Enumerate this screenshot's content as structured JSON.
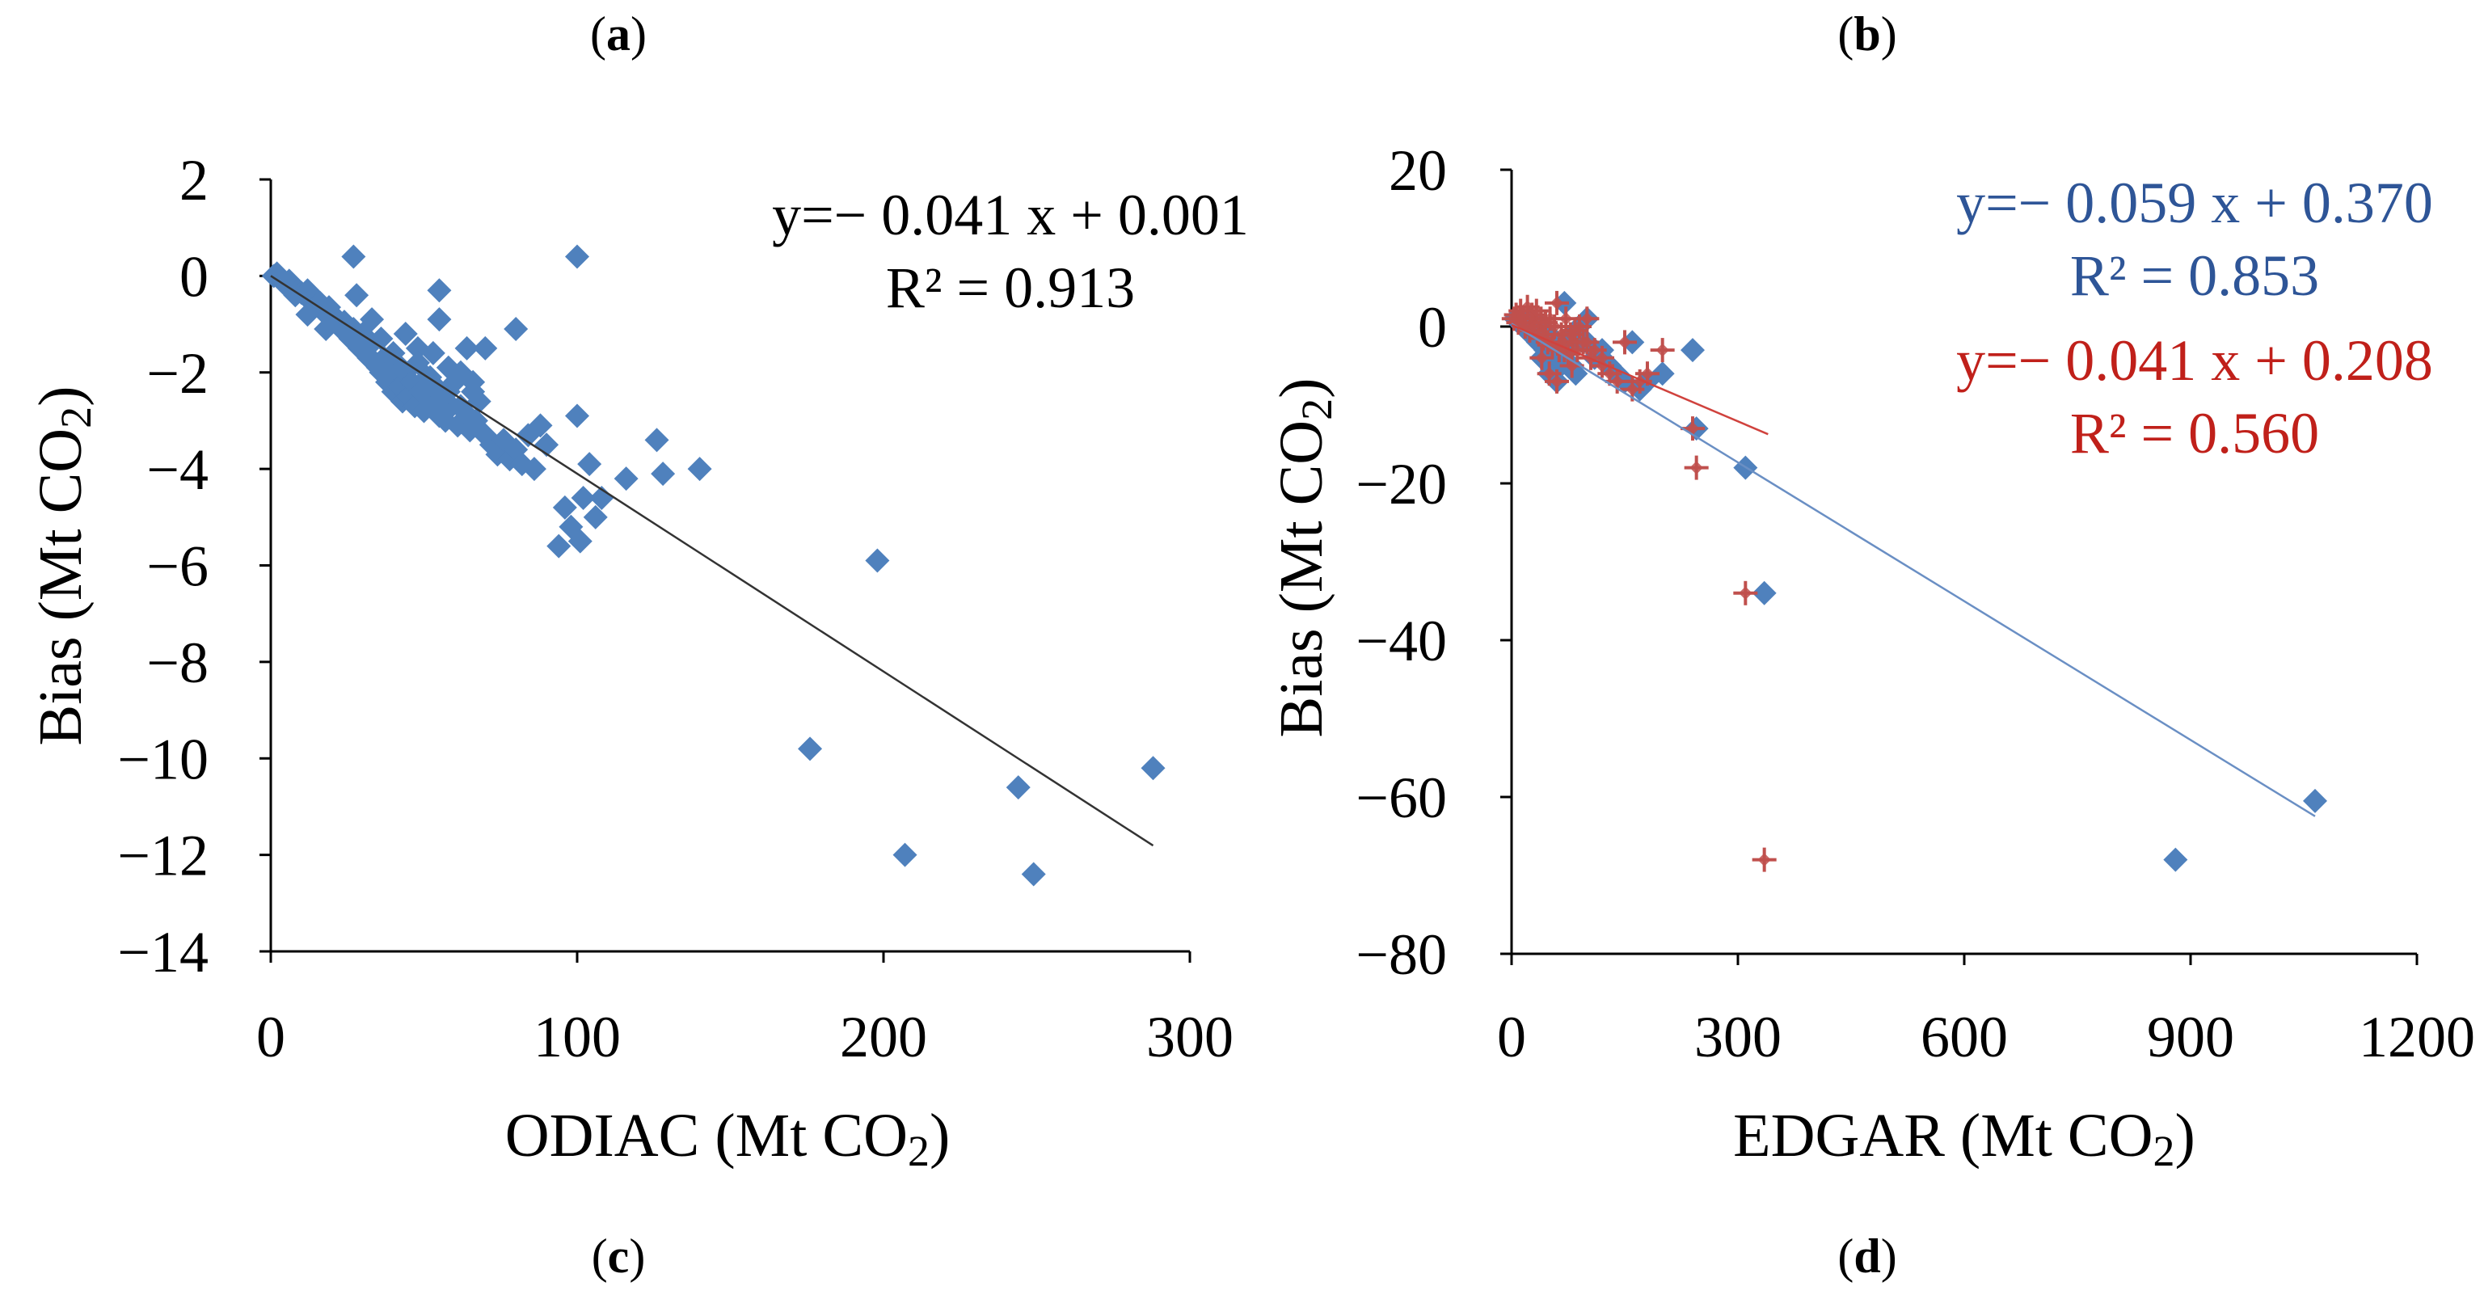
{
  "panels": {
    "a": "a",
    "b": "b",
    "c": "c",
    "d": "d"
  },
  "chart_data": [
    {
      "type": "scatter",
      "title": "",
      "xlabel": "ODIAC (Mt CO",
      "xlabel_sub": "2",
      "xlabel_end": ")",
      "ylabel": "Bias (Mt CO",
      "ylabel_sub": "2",
      "ylabel_end": ")",
      "xlim": [
        0,
        300
      ],
      "ylim": [
        -14,
        2
      ],
      "xticks": [
        0,
        100,
        200,
        300
      ],
      "xtick_labels": [
        "0",
        "100",
        "200",
        "300"
      ],
      "yticks": [
        2,
        0,
        -2,
        -4,
        -6,
        -8,
        -10,
        -12,
        -14
      ],
      "ytick_labels": [
        "2",
        "0",
        "−2",
        "−4",
        "−6",
        "−8",
        "−10",
        "−12",
        "−14"
      ],
      "grid": false,
      "series": [
        {
          "color": "#4f81bd",
          "marker": "diamond",
          "x": [
            1,
            2,
            3,
            4,
            5,
            6,
            7,
            8,
            9,
            10,
            11,
            12,
            13,
            14,
            15,
            16,
            17,
            18,
            19,
            20,
            21,
            22,
            23,
            24,
            25,
            26,
            27,
            28,
            29,
            30,
            31,
            32,
            33,
            34,
            35,
            36,
            37,
            38,
            39,
            40,
            41,
            42,
            43,
            44,
            45,
            46,
            47,
            48,
            49,
            50,
            51,
            52,
            53,
            54,
            55,
            56,
            57,
            58,
            59,
            60,
            61,
            62,
            63,
            64,
            65,
            66,
            67,
            68,
            70,
            72,
            74,
            76,
            78,
            80,
            82,
            84,
            86,
            88,
            90,
            94,
            96,
            98,
            100,
            101,
            102,
            104,
            106,
            108,
            116,
            126,
            128,
            140,
            3,
            5,
            8,
            12,
            18,
            28,
            33,
            36,
            40,
            44,
            48,
            52,
            55,
            58,
            62,
            66,
            70,
            55,
            27,
            80,
            100,
            176,
            198,
            207,
            244,
            249,
            288
          ],
          "y": [
            0.0,
            0.05,
            -0.05,
            -0.1,
            -0.15,
            -0.1,
            -0.2,
            -0.25,
            -0.3,
            -0.35,
            -0.4,
            -0.3,
            -0.5,
            -0.45,
            -0.6,
            -0.55,
            -0.7,
            -0.8,
            -0.65,
            -0.9,
            -0.85,
            -1.0,
            -1.1,
            -0.95,
            -1.2,
            -1.3,
            -1.1,
            -1.4,
            -1.5,
            -1.2,
            -1.6,
            -1.7,
            -1.4,
            -1.8,
            -1.9,
            -2.0,
            -1.7,
            -2.2,
            -2.1,
            -2.4,
            -1.8,
            -2.3,
            -2.6,
            -2.0,
            -2.5,
            -2.2,
            -2.7,
            -1.5,
            -2.4,
            -2.8,
            -2.1,
            -2.6,
            -1.6,
            -2.3,
            -2.9,
            -2.5,
            -3.0,
            -1.9,
            -2.7,
            -2.2,
            -3.1,
            -2.0,
            -2.8,
            -1.5,
            -3.2,
            -2.4,
            -3.0,
            -2.6,
            -3.3,
            -3.5,
            -3.7,
            -3.4,
            -3.8,
            -3.6,
            -3.9,
            -3.3,
            -4.0,
            -3.1,
            -3.5,
            -5.6,
            -4.8,
            -5.2,
            -2.9,
            -5.5,
            -4.6,
            -3.9,
            -5.0,
            -4.6,
            -4.2,
            -3.4,
            -4.1,
            -4.0,
            -0.05,
            -0.2,
            -0.4,
            -0.8,
            -1.1,
            -0.4,
            -0.9,
            -1.3,
            -1.6,
            -1.2,
            -1.8,
            -2.1,
            -0.3,
            -2.4,
            -2.7,
            -2.2,
            -1.5,
            -0.9,
            0.4,
            -1.1,
            0.4,
            -9.8,
            -5.9,
            -12.0,
            -10.6,
            -12.4,
            -10.2
          ]
        }
      ],
      "trendline": {
        "x": [
          0,
          288
        ],
        "y": [
          0.001,
          -11.807
        ],
        "color": "#333333"
      },
      "annotations": [
        {
          "text": "y=− 0.041 x + 0.001",
          "color": "#000000"
        },
        {
          "text": "R² = 0.913",
          "color": "#000000"
        }
      ]
    },
    {
      "type": "scatter",
      "title": "",
      "xlabel": "EDGAR (Mt CO",
      "xlabel_sub": "2",
      "xlabel_end": ")",
      "ylabel": "Bias (Mt CO",
      "ylabel_sub": "2",
      "ylabel_end": ")",
      "xlim": [
        0,
        1200
      ],
      "ylim": [
        -80,
        20
      ],
      "xticks": [
        0,
        300,
        600,
        900,
        1200
      ],
      "xtick_labels": [
        "0",
        "300",
        "600",
        "900",
        "1200"
      ],
      "yticks": [
        20,
        0,
        -20,
        -40,
        -60,
        -80
      ],
      "ytick_labels": [
        "20",
        "0",
        "−20",
        "−40",
        "−60",
        "−80"
      ],
      "grid": false,
      "series": [
        {
          "color": "#4f81bd",
          "marker": "diamond",
          "x": [
            5,
            10,
            15,
            20,
            25,
            30,
            35,
            40,
            45,
            50,
            55,
            60,
            65,
            70,
            75,
            80,
            85,
            90,
            95,
            100,
            110,
            120,
            130,
            140,
            150,
            160,
            170,
            180,
            200,
            240,
            245,
            310,
            335,
            880,
            1065,
            40,
            50,
            60,
            70,
            80,
            100,
            120
          ],
          "y": [
            1,
            0.5,
            0,
            -0.5,
            1,
            -1,
            -2,
            0,
            -3,
            -1,
            -4,
            -2,
            -5,
            3,
            -3,
            -1,
            -6,
            0,
            -2,
            1,
            -4,
            -3,
            -5,
            -6,
            -7,
            -2,
            -8,
            -7,
            -6,
            -3,
            -13,
            -18,
            -34,
            -68,
            -60.5,
            -4,
            -6,
            -7,
            -3,
            -5,
            -2,
            -4
          ]
        },
        {
          "color": "#c0504d",
          "marker": "plus",
          "x": [
            3,
            6,
            9,
            12,
            15,
            18,
            21,
            24,
            27,
            30,
            33,
            36,
            39,
            42,
            45,
            48,
            51,
            54,
            57,
            60,
            63,
            66,
            69,
            72,
            75,
            78,
            81,
            84,
            87,
            90,
            95,
            100,
            105,
            110,
            120,
            130,
            140,
            150,
            160,
            170,
            180,
            200,
            240,
            245,
            310,
            335,
            40,
            50,
            60,
            70,
            80,
            100,
            120
          ],
          "y": [
            1,
            1.5,
            0.5,
            2,
            1,
            0,
            2.5,
            -0.5,
            1.5,
            0,
            2,
            -1,
            1,
            -1.5,
            0.5,
            -2,
            1,
            -2.5,
            0,
            3,
            -3,
            -1,
            -2,
            1,
            -3.5,
            -1,
            -2,
            -0.5,
            -3,
            0,
            -2,
            1,
            -4,
            -3,
            -5,
            -6,
            -7,
            -2,
            -8,
            -7,
            -6,
            -3,
            -13,
            -18,
            -34,
            -68,
            -4,
            -6,
            -7,
            -3,
            -5,
            -2,
            -4
          ]
        }
      ],
      "trendlines": [
        {
          "x": [
            0,
            1065
          ],
          "y": [
            0.37,
            -62.46
          ],
          "color": "#6a8fc4"
        },
        {
          "x": [
            0,
            340
          ],
          "y": [
            0.208,
            -13.73
          ],
          "color": "#d0423d"
        }
      ],
      "annotations": [
        {
          "text": "y=− 0.059 x + 0.370",
          "color": "#2e5597"
        },
        {
          "text": "R² = 0.853",
          "color": "#2e5597"
        },
        {
          "text": "y=− 0.041 x + 0.208",
          "color": "#c0201a"
        },
        {
          "text": "R² = 0.560",
          "color": "#c0201a"
        }
      ]
    }
  ]
}
